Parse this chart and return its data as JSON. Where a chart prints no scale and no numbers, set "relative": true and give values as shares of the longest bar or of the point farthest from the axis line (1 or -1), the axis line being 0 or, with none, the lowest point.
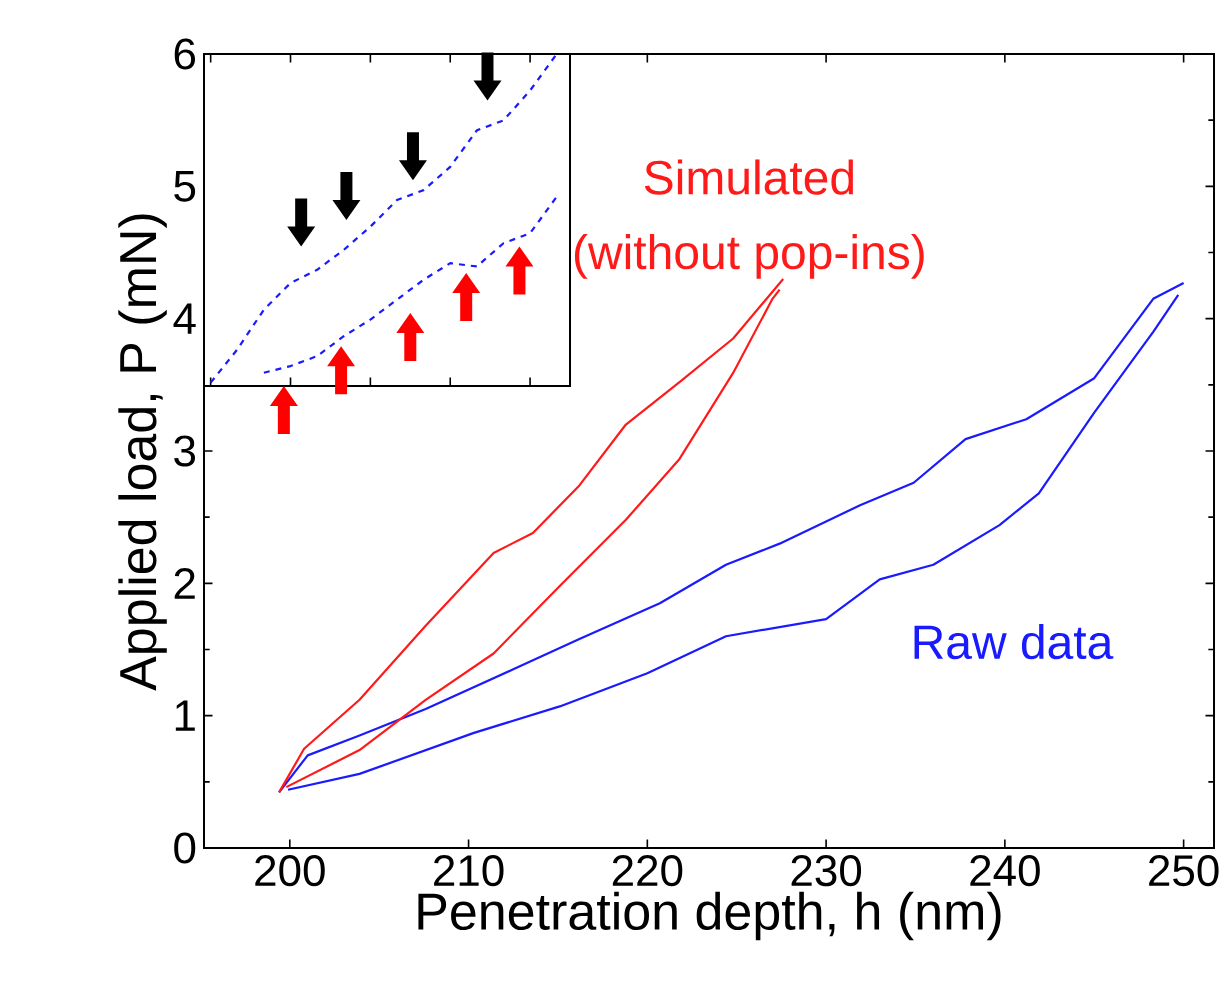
{
  "chart_data": [
    {
      "type": "line",
      "xlabel": "Penetration depth, h (nm)",
      "ylabel": "Applied load, P (mN)",
      "xlim": [
        195.2,
        251.7
      ],
      "ylim": [
        0,
        6
      ],
      "xticks": [
        200,
        210,
        220,
        230,
        240,
        250
      ],
      "yticks": [
        0,
        1,
        2,
        3,
        4,
        5,
        6
      ],
      "marker": "none",
      "line_style": "solid",
      "annotations": [
        "(without pop-ins)"
      ],
      "series": [
        {
          "name": "Raw data",
          "color": "#1a1aff",
          "x": [
            199.4,
            201.0,
            203.9,
            207.6,
            212.5,
            216.2,
            220.7,
            224.4,
            227.4,
            231.9,
            234.9,
            237.8,
            241.2,
            245.0,
            248.3,
            250.0
          ],
          "values": [
            0.42,
            0.7,
            0.85,
            1.05,
            1.35,
            1.58,
            1.85,
            2.14,
            2.3,
            2.59,
            2.76,
            3.09,
            3.24,
            3.55,
            4.15,
            4.27
          ]
        },
        {
          "color": "#1a1aff",
          "x": [
            199.9,
            203.9,
            210.3,
            215.1,
            220.0,
            224.4,
            230.0,
            233.0,
            236.0,
            239.7,
            241.9,
            245.0,
            248.3,
            249.7
          ],
          "values": [
            0.44,
            0.56,
            0.87,
            1.07,
            1.32,
            1.6,
            1.73,
            2.03,
            2.14,
            2.44,
            2.68,
            3.29,
            3.9,
            4.18
          ]
        },
        {
          "name": "Simulated",
          "color": "#ff1a1a",
          "x": [
            199.4,
            200.8,
            203.9,
            207.6,
            211.4,
            213.6,
            216.2,
            218.8,
            221.8,
            224.8,
            227.6
          ],
          "values": [
            0.42,
            0.75,
            1.12,
            1.68,
            2.23,
            2.38,
            2.74,
            3.2,
            3.52,
            3.85,
            4.3
          ]
        },
        {
          "color": "#ff1a1a",
          "x": [
            199.8,
            203.9,
            207.6,
            211.4,
            215.1,
            218.8,
            221.8,
            224.8,
            227.0,
            227.4
          ],
          "values": [
            0.46,
            0.74,
            1.12,
            1.47,
            1.98,
            2.48,
            2.94,
            3.59,
            4.15,
            4.22
          ]
        }
      ]
    },
    {
      "type": "line",
      "relative": true,
      "marker": "none",
      "line_style": "dashed",
      "categories": [
        null,
        null,
        null,
        null,
        null,
        null,
        null,
        null,
        null,
        null,
        null,
        null,
        null,
        null
      ],
      "series": [
        {
          "color": "#1a1aff",
          "values": [
            0.01,
            0.11,
            0.23,
            0.31,
            0.35,
            0.41,
            0.48,
            0.56,
            0.59,
            0.66,
            0.77,
            0.8,
            0.89,
            1.0
          ]
        },
        {
          "color": "#1a1aff",
          "values": [
            null,
            null,
            0.04,
            0.06,
            0.09,
            0.15,
            0.2,
            0.26,
            0.32,
            0.37,
            0.36,
            0.43,
            0.46,
            0.57
          ]
        }
      ]
    }
  ]
}
